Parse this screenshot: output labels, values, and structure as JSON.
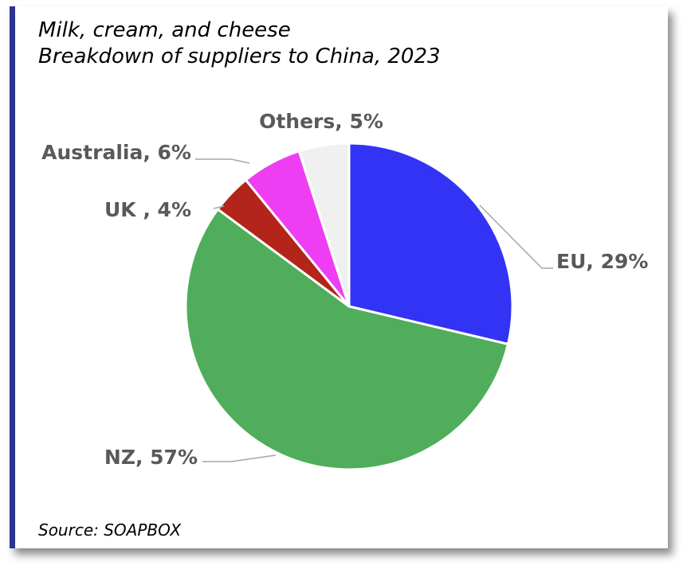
{
  "chart_data": {
    "type": "pie",
    "title": "Milk, cream, and cheese",
    "subtitle": "Breakdown of suppliers to China, 2023",
    "slices": [
      {
        "label": "EU",
        "value": 29,
        "display": "EU, 29%",
        "color": "#3333f5"
      },
      {
        "label": "NZ",
        "value": 57,
        "display": "NZ, 57%",
        "color": "#4fad5b"
      },
      {
        "label": "UK",
        "value": 4,
        "display": "UK , 4%",
        "color": "#b3241b"
      },
      {
        "label": "Australia",
        "value": 6,
        "display": "Australia, 6%",
        "color": "#ee3df2"
      },
      {
        "label": "Others",
        "value": 5,
        "display": "Others, 5%",
        "color": "#f0f0f0"
      }
    ],
    "start_angle": "12 o'clock",
    "direction": "clockwise",
    "legend": "none",
    "data_labels": "outside with leader lines"
  },
  "source": "Source: SOAPBOX",
  "colors": {
    "accent_bar": "#2b3493",
    "label_text": "#595959",
    "leader_line": "#a6a6a6"
  }
}
